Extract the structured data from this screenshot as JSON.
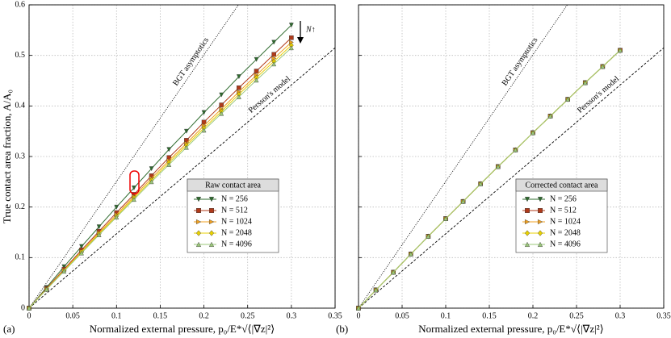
{
  "chart_data": [
    {
      "type": "line",
      "panel_label": "(a)",
      "x_label": "Normalized external pressure, p₀/E*√⟨|∇z|²⟩",
      "y_label": "True contact area fraction, A/A₀",
      "legend_title": "Raw contact area",
      "legend_loc": "center right",
      "annotation": "N↑",
      "grid": true,
      "xlim": [
        0,
        0.35
      ],
      "ylim": [
        0,
        0.6
      ],
      "xticks": [
        0,
        0.05,
        0.1,
        0.15,
        0.2,
        0.25,
        0.3,
        0.35
      ],
      "yticks": [
        0,
        0.1,
        0.2,
        0.3,
        0.4,
        0.5,
        0.6
      ],
      "x": [
        0,
        0.02,
        0.04,
        0.06,
        0.08,
        0.1,
        0.12,
        0.14,
        0.16,
        0.18,
        0.2,
        0.22,
        0.24,
        0.26,
        0.28,
        0.3
      ],
      "reference_lines": [
        {
          "name": "BGT asymptotics",
          "x": [
            0,
            0.2394
          ],
          "y": [
            0,
            0.6
          ],
          "dash": "dotted"
        },
        {
          "name": "Persson's model",
          "x": [
            0,
            0.35
          ],
          "y": [
            0,
            0.515
          ],
          "dash": "dashed"
        }
      ],
      "series": [
        {
          "name": "N = 256",
          "color": "#2e6b2e",
          "marker": "triangle-down",
          "values": [
            0,
            0.041,
            0.082,
            0.122,
            0.161,
            0.2,
            0.238,
            0.276,
            0.314,
            0.35,
            0.387,
            0.422,
            0.458,
            0.492,
            0.526,
            0.56
          ]
        },
        {
          "name": "N = 512",
          "color": "#b03a1a",
          "marker": "square",
          "values": [
            0,
            0.039,
            0.077,
            0.115,
            0.152,
            0.189,
            0.225,
            0.262,
            0.298,
            0.332,
            0.368,
            0.402,
            0.436,
            0.469,
            0.502,
            0.535
          ]
        },
        {
          "name": "N = 1024",
          "color": "#f0a020",
          "marker": "triangle-right",
          "values": [
            0,
            0.038,
            0.075,
            0.112,
            0.149,
            0.185,
            0.221,
            0.257,
            0.292,
            0.326,
            0.361,
            0.394,
            0.428,
            0.461,
            0.494,
            0.526
          ]
        },
        {
          "name": "N = 2048",
          "color": "#e8d000",
          "marker": "diamond",
          "values": [
            0,
            0.037,
            0.074,
            0.111,
            0.147,
            0.182,
            0.218,
            0.253,
            0.288,
            0.322,
            0.356,
            0.389,
            0.423,
            0.456,
            0.488,
            0.52
          ]
        },
        {
          "name": "N = 4096",
          "color": "#9bc87a",
          "marker": "triangle-up",
          "values": [
            0,
            0.037,
            0.073,
            0.109,
            0.145,
            0.18,
            0.215,
            0.25,
            0.284,
            0.318,
            0.352,
            0.385,
            0.418,
            0.451,
            0.483,
            0.515
          ]
        }
      ]
    },
    {
      "type": "line",
      "panel_label": "(b)",
      "x_label": "Normalized external pressure, p₀/E*√⟨|∇z|²⟩",
      "legend_title": "Corrected contact area",
      "legend_loc": "center right",
      "grid": true,
      "xlim": [
        0,
        0.35
      ],
      "ylim": [
        0,
        0.6
      ],
      "xticks": [
        0,
        0.05,
        0.1,
        0.15,
        0.2,
        0.25,
        0.3,
        0.35
      ],
      "yticks": [
        0,
        0.1,
        0.2,
        0.3,
        0.4,
        0.5,
        0.6
      ],
      "x": [
        0,
        0.02,
        0.04,
        0.06,
        0.08,
        0.1,
        0.12,
        0.14,
        0.16,
        0.18,
        0.2,
        0.22,
        0.24,
        0.26,
        0.28,
        0.3
      ],
      "reference_lines": [
        {
          "name": "BGT asymptotics",
          "x": [
            0,
            0.2394
          ],
          "y": [
            0,
            0.6
          ],
          "dash": "dotted"
        },
        {
          "name": "Persson's model",
          "x": [
            0,
            0.35
          ],
          "y": [
            0,
            0.515
          ],
          "dash": "dashed"
        }
      ],
      "series": [
        {
          "name": "N = 256",
          "color": "#2e6b2e",
          "marker": "triangle-down",
          "values": [
            0,
            0.036,
            0.071,
            0.107,
            0.142,
            0.177,
            0.211,
            0.246,
            0.28,
            0.313,
            0.347,
            0.38,
            0.413,
            0.446,
            0.478,
            0.51
          ]
        },
        {
          "name": "N = 512",
          "color": "#b03a1a",
          "marker": "square",
          "values": [
            0,
            0.036,
            0.071,
            0.107,
            0.142,
            0.177,
            0.211,
            0.246,
            0.28,
            0.313,
            0.347,
            0.38,
            0.413,
            0.446,
            0.478,
            0.51
          ]
        },
        {
          "name": "N = 1024",
          "color": "#f0a020",
          "marker": "triangle-right",
          "values": [
            0,
            0.036,
            0.071,
            0.107,
            0.142,
            0.177,
            0.211,
            0.246,
            0.28,
            0.313,
            0.347,
            0.38,
            0.413,
            0.446,
            0.478,
            0.51
          ]
        },
        {
          "name": "N = 2048",
          "color": "#e8d000",
          "marker": "diamond",
          "values": [
            0,
            0.036,
            0.071,
            0.107,
            0.142,
            0.177,
            0.211,
            0.246,
            0.28,
            0.313,
            0.347,
            0.38,
            0.413,
            0.446,
            0.478,
            0.51
          ]
        },
        {
          "name": "N = 4096",
          "color": "#9bc87a",
          "marker": "triangle-up",
          "values": [
            0,
            0.036,
            0.071,
            0.107,
            0.142,
            0.177,
            0.211,
            0.246,
            0.28,
            0.313,
            0.347,
            0.38,
            0.413,
            0.446,
            0.478,
            0.51
          ]
        }
      ]
    }
  ]
}
